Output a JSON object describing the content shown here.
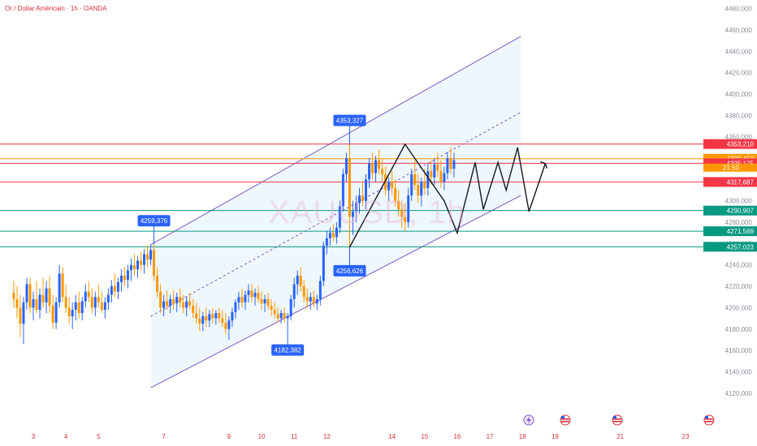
{
  "title": "Or / Dollar Américain · 1h · OANDA",
  "watermark": "XAUUSD, 1h",
  "chart_data": {
    "type": "candlestick",
    "ylim": [
      4110,
      4485
    ],
    "yticks": [
      "4480,000",
      "4460,000",
      "4440,000",
      "4420,000",
      "4400,000",
      "4380,000",
      "4360,000",
      "4340,000",
      "4320,000",
      "4300,000",
      "4280,000",
      "4260,000",
      "4240,000",
      "4220,000",
      "4200,000",
      "4180,000",
      "4160,000",
      "4140,000",
      "4120,000"
    ],
    "ytick_values": [
      4480,
      4460,
      4440,
      4420,
      4400,
      4380,
      4360,
      4340,
      4320,
      4300,
      4280,
      4260,
      4240,
      4220,
      4200,
      4180,
      4160,
      4140,
      4120
    ],
    "xticks": [
      {
        "label": "3",
        "x": 3
      },
      {
        "label": "4",
        "x": 4
      },
      {
        "label": "5",
        "x": 5
      },
      {
        "label": "7",
        "x": 7
      },
      {
        "label": "9",
        "x": 9
      },
      {
        "label": "10",
        "x": 10
      },
      {
        "label": "11",
        "x": 11
      },
      {
        "label": "12",
        "x": 12
      },
      {
        "label": "14",
        "x": 14
      },
      {
        "label": "15",
        "x": 15
      },
      {
        "label": "16",
        "x": 16
      },
      {
        "label": "17",
        "x": 17
      },
      {
        "label": "18",
        "x": 18
      },
      {
        "label": "19",
        "x": 19
      },
      {
        "label": "21",
        "x": 21
      },
      {
        "label": "23",
        "x": 23
      }
    ],
    "price_lines": [
      {
        "value": 4353.21,
        "label": "4353,210",
        "color": "#f23645"
      },
      {
        "value": 4339.45,
        "label": "4339,450",
        "color": "#ff9800"
      },
      {
        "value": 4335.175,
        "label": "4335,175",
        "color": "#f23645"
      },
      {
        "value": 4317.687,
        "label": "4317,687",
        "color": "#f23645"
      },
      {
        "value": 4290.907,
        "label": "4290,907",
        "color": "#089981"
      },
      {
        "value": 4271.569,
        "label": "4271,569",
        "color": "#089981"
      },
      {
        "value": 4257.023,
        "label": "4257,023",
        "color": "#089981"
      }
    ],
    "countdown": "21:50",
    "callouts": [
      {
        "label": "4259,376",
        "value": 4259.376,
        "day": 6.7,
        "dir": "up"
      },
      {
        "label": "4353,327",
        "value": 4353.327,
        "day": 12.7,
        "dir": "up"
      },
      {
        "label": "4256,626",
        "value": 4256.626,
        "day": 12.7,
        "dir": "down"
      },
      {
        "label": "4182,382",
        "value": 4182.382,
        "day": 10.8,
        "dir": "down"
      }
    ],
    "channel": {
      "upper": [
        [
          6.6,
          4259
        ],
        [
          17.95,
          4454
        ]
      ],
      "lower": [
        [
          6.6,
          4125
        ],
        [
          17.95,
          4305
        ]
      ],
      "mid": [
        [
          6.6,
          4192
        ],
        [
          17.95,
          4383
        ]
      ]
    },
    "projection": [
      [
        12.7,
        4256.6
      ],
      [
        14.4,
        4353
      ],
      [
        15.6,
        4300
      ],
      [
        16.0,
        4270
      ],
      [
        16.55,
        4336
      ],
      [
        16.8,
        4292
      ],
      [
        17.25,
        4336
      ],
      [
        17.5,
        4310
      ],
      [
        17.85,
        4350
      ],
      [
        18.2,
        4290
      ],
      [
        18.7,
        4335
      ]
    ],
    "series": [
      {
        "x": 2.4,
        "o": 4214,
        "h": 4225,
        "l": 4200,
        "c": 4208
      },
      {
        "x": 2.5,
        "o": 4208,
        "h": 4220,
        "l": 4190,
        "c": 4200
      },
      {
        "x": 2.6,
        "o": 4200,
        "h": 4212,
        "l": 4172,
        "c": 4185
      },
      {
        "x": 2.7,
        "o": 4185,
        "h": 4210,
        "l": 4166,
        "c": 4205
      },
      {
        "x": 2.8,
        "o": 4205,
        "h": 4228,
        "l": 4198,
        "c": 4222
      },
      {
        "x": 2.9,
        "o": 4222,
        "h": 4228,
        "l": 4195,
        "c": 4200
      },
      {
        "x": 3.0,
        "o": 4200,
        "h": 4215,
        "l": 4188,
        "c": 4208
      },
      {
        "x": 3.1,
        "o": 4208,
        "h": 4225,
        "l": 4195,
        "c": 4198
      },
      {
        "x": 3.2,
        "o": 4198,
        "h": 4218,
        "l": 4190,
        "c": 4212
      },
      {
        "x": 3.3,
        "o": 4212,
        "h": 4228,
        "l": 4200,
        "c": 4205
      },
      {
        "x": 3.4,
        "o": 4205,
        "h": 4225,
        "l": 4195,
        "c": 4218
      },
      {
        "x": 3.5,
        "o": 4218,
        "h": 4230,
        "l": 4195,
        "c": 4202
      },
      {
        "x": 3.6,
        "o": 4202,
        "h": 4212,
        "l": 4180,
        "c": 4186
      },
      {
        "x": 3.7,
        "o": 4186,
        "h": 4210,
        "l": 4180,
        "c": 4205
      },
      {
        "x": 3.8,
        "o": 4205,
        "h": 4240,
        "l": 4200,
        "c": 4232
      },
      {
        "x": 3.9,
        "o": 4232,
        "h": 4238,
        "l": 4205,
        "c": 4210
      },
      {
        "x": 4.0,
        "o": 4210,
        "h": 4222,
        "l": 4195,
        "c": 4200
      },
      {
        "x": 4.1,
        "o": 4200,
        "h": 4210,
        "l": 4185,
        "c": 4192
      },
      {
        "x": 4.2,
        "o": 4192,
        "h": 4205,
        "l": 4180,
        "c": 4198
      },
      {
        "x": 4.3,
        "o": 4198,
        "h": 4212,
        "l": 4188,
        "c": 4205
      },
      {
        "x": 4.4,
        "o": 4205,
        "h": 4215,
        "l": 4190,
        "c": 4195
      },
      {
        "x": 4.5,
        "o": 4195,
        "h": 4210,
        "l": 4188,
        "c": 4206
      },
      {
        "x": 4.6,
        "o": 4206,
        "h": 4222,
        "l": 4200,
        "c": 4215
      },
      {
        "x": 4.7,
        "o": 4215,
        "h": 4225,
        "l": 4205,
        "c": 4210
      },
      {
        "x": 4.8,
        "o": 4210,
        "h": 4218,
        "l": 4195,
        "c": 4200
      },
      {
        "x": 4.9,
        "o": 4200,
        "h": 4215,
        "l": 4192,
        "c": 4210
      },
      {
        "x": 5.0,
        "o": 4210,
        "h": 4222,
        "l": 4200,
        "c": 4205
      },
      {
        "x": 5.1,
        "o": 4205,
        "h": 4215,
        "l": 4195,
        "c": 4198
      },
      {
        "x": 5.2,
        "o": 4198,
        "h": 4210,
        "l": 4190,
        "c": 4205
      },
      {
        "x": 5.3,
        "o": 4205,
        "h": 4218,
        "l": 4198,
        "c": 4212
      },
      {
        "x": 5.4,
        "o": 4212,
        "h": 4226,
        "l": 4205,
        "c": 4220
      },
      {
        "x": 5.5,
        "o": 4220,
        "h": 4232,
        "l": 4210,
        "c": 4215
      },
      {
        "x": 5.6,
        "o": 4215,
        "h": 4228,
        "l": 4208,
        "c": 4224
      },
      {
        "x": 5.7,
        "o": 4224,
        "h": 4236,
        "l": 4215,
        "c": 4230
      },
      {
        "x": 5.8,
        "o": 4230,
        "h": 4238,
        "l": 4220,
        "c": 4226
      },
      {
        "x": 5.9,
        "o": 4226,
        "h": 4240,
        "l": 4218,
        "c": 4235
      },
      {
        "x": 6.0,
        "o": 4235,
        "h": 4246,
        "l": 4225,
        "c": 4240
      },
      {
        "x": 6.1,
        "o": 4240,
        "h": 4250,
        "l": 4230,
        "c": 4236
      },
      {
        "x": 6.2,
        "o": 4236,
        "h": 4248,
        "l": 4228,
        "c": 4244
      },
      {
        "x": 6.3,
        "o": 4244,
        "h": 4252,
        "l": 4235,
        "c": 4240
      },
      {
        "x": 6.4,
        "o": 4240,
        "h": 4255,
        "l": 4232,
        "c": 4250
      },
      {
        "x": 6.5,
        "o": 4250,
        "h": 4258,
        "l": 4238,
        "c": 4245
      },
      {
        "x": 6.6,
        "o": 4245,
        "h": 4259,
        "l": 4240,
        "c": 4254
      },
      {
        "x": 6.7,
        "o": 4254,
        "h": 4259,
        "l": 4225,
        "c": 4230
      },
      {
        "x": 6.8,
        "o": 4230,
        "h": 4238,
        "l": 4210,
        "c": 4215
      },
      {
        "x": 6.9,
        "o": 4215,
        "h": 4222,
        "l": 4195,
        "c": 4200
      },
      {
        "x": 7.0,
        "o": 4200,
        "h": 4212,
        "l": 4192,
        "c": 4206
      },
      {
        "x": 7.1,
        "o": 4206,
        "h": 4216,
        "l": 4198,
        "c": 4202
      },
      {
        "x": 7.2,
        "o": 4202,
        "h": 4212,
        "l": 4195,
        "c": 4208
      },
      {
        "x": 7.3,
        "o": 4208,
        "h": 4216,
        "l": 4198,
        "c": 4204
      },
      {
        "x": 7.4,
        "o": 4204,
        "h": 4214,
        "l": 4196,
        "c": 4210
      },
      {
        "x": 7.5,
        "o": 4210,
        "h": 4218,
        "l": 4200,
        "c": 4205
      },
      {
        "x": 7.6,
        "o": 4205,
        "h": 4212,
        "l": 4195,
        "c": 4200
      },
      {
        "x": 7.7,
        "o": 4200,
        "h": 4210,
        "l": 4192,
        "c": 4206
      },
      {
        "x": 7.8,
        "o": 4206,
        "h": 4214,
        "l": 4198,
        "c": 4202
      },
      {
        "x": 7.9,
        "o": 4202,
        "h": 4208,
        "l": 4190,
        "c": 4195
      },
      {
        "x": 8.0,
        "o": 4195,
        "h": 4205,
        "l": 4185,
        "c": 4190
      },
      {
        "x": 8.1,
        "o": 4190,
        "h": 4200,
        "l": 4178,
        "c": 4185
      },
      {
        "x": 8.2,
        "o": 4185,
        "h": 4196,
        "l": 4178,
        "c": 4192
      },
      {
        "x": 8.3,
        "o": 4192,
        "h": 4200,
        "l": 4182,
        "c": 4188
      },
      {
        "x": 8.4,
        "o": 4188,
        "h": 4198,
        "l": 4182,
        "c": 4194
      },
      {
        "x": 8.5,
        "o": 4194,
        "h": 4200,
        "l": 4185,
        "c": 4190
      },
      {
        "x": 8.6,
        "o": 4190,
        "h": 4198,
        "l": 4184,
        "c": 4195
      },
      {
        "x": 8.7,
        "o": 4195,
        "h": 4200,
        "l": 4186,
        "c": 4190
      },
      {
        "x": 8.8,
        "o": 4190,
        "h": 4198,
        "l": 4182,
        "c": 4186
      },
      {
        "x": 8.9,
        "o": 4186,
        "h": 4195,
        "l": 4175,
        "c": 4180
      },
      {
        "x": 9.0,
        "o": 4180,
        "h": 4192,
        "l": 4170,
        "c": 4188
      },
      {
        "x": 9.1,
        "o": 4188,
        "h": 4200,
        "l": 4182,
        "c": 4196
      },
      {
        "x": 9.2,
        "o": 4196,
        "h": 4208,
        "l": 4190,
        "c": 4205
      },
      {
        "x": 9.3,
        "o": 4205,
        "h": 4215,
        "l": 4198,
        "c": 4210
      },
      {
        "x": 9.4,
        "o": 4210,
        "h": 4218,
        "l": 4200,
        "c": 4205
      },
      {
        "x": 9.5,
        "o": 4205,
        "h": 4216,
        "l": 4198,
        "c": 4212
      },
      {
        "x": 9.6,
        "o": 4212,
        "h": 4222,
        "l": 4205,
        "c": 4216
      },
      {
        "x": 9.7,
        "o": 4216,
        "h": 4222,
        "l": 4205,
        "c": 4210
      },
      {
        "x": 9.8,
        "o": 4210,
        "h": 4218,
        "l": 4202,
        "c": 4214
      },
      {
        "x": 9.9,
        "o": 4214,
        "h": 4220,
        "l": 4205,
        "c": 4208
      },
      {
        "x": 10.0,
        "o": 4208,
        "h": 4215,
        "l": 4198,
        "c": 4204
      },
      {
        "x": 10.1,
        "o": 4204,
        "h": 4212,
        "l": 4196,
        "c": 4208
      },
      {
        "x": 10.2,
        "o": 4208,
        "h": 4214,
        "l": 4198,
        "c": 4202
      },
      {
        "x": 10.3,
        "o": 4202,
        "h": 4208,
        "l": 4192,
        "c": 4198
      },
      {
        "x": 10.4,
        "o": 4198,
        "h": 4205,
        "l": 4190,
        "c": 4194
      },
      {
        "x": 10.5,
        "o": 4194,
        "h": 4200,
        "l": 4186,
        "c": 4190
      },
      {
        "x": 10.6,
        "o": 4190,
        "h": 4198,
        "l": 4185,
        "c": 4195
      },
      {
        "x": 10.7,
        "o": 4195,
        "h": 4200,
        "l": 4186,
        "c": 4190
      },
      {
        "x": 10.8,
        "o": 4190,
        "h": 4195,
        "l": 4182,
        "c": 4192
      },
      {
        "x": 10.9,
        "o": 4192,
        "h": 4212,
        "l": 4188,
        "c": 4208
      },
      {
        "x": 11.0,
        "o": 4208,
        "h": 4228,
        "l": 4200,
        "c": 4222
      },
      {
        "x": 11.1,
        "o": 4222,
        "h": 4235,
        "l": 4212,
        "c": 4230
      },
      {
        "x": 11.2,
        "o": 4230,
        "h": 4238,
        "l": 4215,
        "c": 4220
      },
      {
        "x": 11.3,
        "o": 4220,
        "h": 4226,
        "l": 4205,
        "c": 4210
      },
      {
        "x": 11.4,
        "o": 4210,
        "h": 4218,
        "l": 4200,
        "c": 4206
      },
      {
        "x": 11.5,
        "o": 4206,
        "h": 4214,
        "l": 4198,
        "c": 4210
      },
      {
        "x": 11.6,
        "o": 4210,
        "h": 4216,
        "l": 4200,
        "c": 4204
      },
      {
        "x": 11.7,
        "o": 4204,
        "h": 4212,
        "l": 4198,
        "c": 4208
      },
      {
        "x": 11.8,
        "o": 4208,
        "h": 4230,
        "l": 4202,
        "c": 4225
      },
      {
        "x": 11.9,
        "o": 4225,
        "h": 4262,
        "l": 4220,
        "c": 4258
      },
      {
        "x": 12.0,
        "o": 4258,
        "h": 4272,
        "l": 4250,
        "c": 4265
      },
      {
        "x": 12.1,
        "o": 4265,
        "h": 4275,
        "l": 4258,
        "c": 4270
      },
      {
        "x": 12.2,
        "o": 4270,
        "h": 4278,
        "l": 4262,
        "c": 4266
      },
      {
        "x": 12.3,
        "o": 4266,
        "h": 4280,
        "l": 4260,
        "c": 4275
      },
      {
        "x": 12.4,
        "o": 4275,
        "h": 4300,
        "l": 4270,
        "c": 4295
      },
      {
        "x": 12.5,
        "o": 4295,
        "h": 4330,
        "l": 4290,
        "c": 4325
      },
      {
        "x": 12.6,
        "o": 4325,
        "h": 4345,
        "l": 4318,
        "c": 4340
      },
      {
        "x": 12.7,
        "o": 4340,
        "h": 4353,
        "l": 4256,
        "c": 4285
      },
      {
        "x": 12.8,
        "o": 4285,
        "h": 4300,
        "l": 4268,
        "c": 4290
      },
      {
        "x": 12.9,
        "o": 4290,
        "h": 4305,
        "l": 4280,
        "c": 4298
      },
      {
        "x": 13.0,
        "o": 4298,
        "h": 4312,
        "l": 4288,
        "c": 4305
      },
      {
        "x": 13.1,
        "o": 4305,
        "h": 4318,
        "l": 4295,
        "c": 4300
      },
      {
        "x": 13.2,
        "o": 4300,
        "h": 4325,
        "l": 4292,
        "c": 4320
      },
      {
        "x": 13.3,
        "o": 4320,
        "h": 4340,
        "l": 4312,
        "c": 4335
      },
      {
        "x": 13.4,
        "o": 4335,
        "h": 4345,
        "l": 4320,
        "c": 4326
      },
      {
        "x": 13.5,
        "o": 4326,
        "h": 4342,
        "l": 4318,
        "c": 4338
      },
      {
        "x": 13.6,
        "o": 4338,
        "h": 4348,
        "l": 4325,
        "c": 4330
      },
      {
        "x": 13.7,
        "o": 4330,
        "h": 4340,
        "l": 4318,
        "c": 4325
      },
      {
        "x": 13.8,
        "o": 4325,
        "h": 4332,
        "l": 4305,
        "c": 4310
      },
      {
        "x": 13.9,
        "o": 4310,
        "h": 4322,
        "l": 4300,
        "c": 4318
      },
      {
        "x": 14.0,
        "o": 4318,
        "h": 4328,
        "l": 4305,
        "c": 4312
      },
      {
        "x": 14.1,
        "o": 4312,
        "h": 4320,
        "l": 4295,
        "c": 4300
      },
      {
        "x": 14.2,
        "o": 4300,
        "h": 4310,
        "l": 4285,
        "c": 4292
      },
      {
        "x": 14.3,
        "o": 4292,
        "h": 4300,
        "l": 4275,
        "c": 4285
      },
      {
        "x": 14.4,
        "o": 4285,
        "h": 4298,
        "l": 4272,
        "c": 4280
      },
      {
        "x": 14.5,
        "o": 4280,
        "h": 4312,
        "l": 4275,
        "c": 4305
      },
      {
        "x": 14.6,
        "o": 4305,
        "h": 4330,
        "l": 4300,
        "c": 4325
      },
      {
        "x": 14.7,
        "o": 4325,
        "h": 4338,
        "l": 4310,
        "c": 4315
      },
      {
        "x": 14.8,
        "o": 4315,
        "h": 4325,
        "l": 4298,
        "c": 4305
      },
      {
        "x": 14.9,
        "o": 4305,
        "h": 4322,
        "l": 4295,
        "c": 4318
      },
      {
        "x": 15.0,
        "o": 4318,
        "h": 4330,
        "l": 4306,
        "c": 4312
      },
      {
        "x": 15.1,
        "o": 4312,
        "h": 4335,
        "l": 4305,
        "c": 4328
      },
      {
        "x": 15.2,
        "o": 4328,
        "h": 4338,
        "l": 4315,
        "c": 4322
      },
      {
        "x": 15.3,
        "o": 4322,
        "h": 4340,
        "l": 4315,
        "c": 4334
      },
      {
        "x": 15.4,
        "o": 4334,
        "h": 4345,
        "l": 4322,
        "c": 4328
      },
      {
        "x": 15.5,
        "o": 4328,
        "h": 4338,
        "l": 4312,
        "c": 4318
      },
      {
        "x": 15.6,
        "o": 4318,
        "h": 4332,
        "l": 4310,
        "c": 4326
      },
      {
        "x": 15.7,
        "o": 4326,
        "h": 4346,
        "l": 4320,
        "c": 4340
      },
      {
        "x": 15.8,
        "o": 4340,
        "h": 4350,
        "l": 4325,
        "c": 4330
      },
      {
        "x": 15.9,
        "o": 4330,
        "h": 4345,
        "l": 4322,
        "c": 4338
      }
    ]
  }
}
